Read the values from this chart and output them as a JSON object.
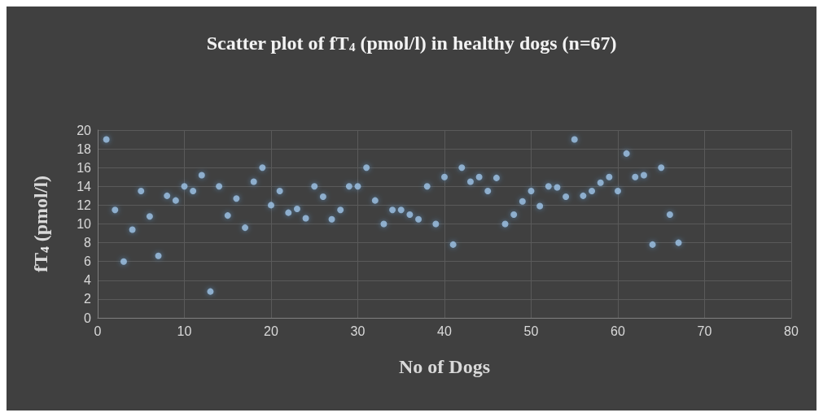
{
  "chart_data": {
    "type": "scatter",
    "title": "Scatter plot of fT$_{4}$ (pmol/l) in healthy dogs (n=67)",
    "xlabel": "No of Dogs",
    "ylabel": "fT$_{4}$ (pmol/l)",
    "x": [
      1,
      2,
      3,
      4,
      5,
      6,
      7,
      8,
      9,
      10,
      11,
      12,
      13,
      14,
      15,
      16,
      17,
      18,
      19,
      20,
      21,
      22,
      23,
      24,
      25,
      26,
      27,
      28,
      29,
      30,
      31,
      32,
      33,
      34,
      35,
      36,
      37,
      38,
      39,
      40,
      41,
      42,
      43,
      44,
      45,
      46,
      47,
      48,
      49,
      50,
      51,
      52,
      53,
      54,
      55,
      56,
      57,
      58,
      59,
      60,
      61,
      62,
      63,
      64,
      65,
      66,
      67
    ],
    "values": [
      19,
      11.5,
      6,
      9.4,
      13.5,
      10.8,
      6.6,
      13,
      12.5,
      14,
      13.5,
      15.2,
      2.8,
      14,
      10.9,
      12.7,
      9.6,
      14.5,
      16,
      12,
      13.5,
      11.2,
      11.6,
      10.6,
      14,
      12.9,
      10.5,
      11.5,
      14,
      14,
      16,
      12.5,
      10,
      11.5,
      11.5,
      11,
      10.5,
      14,
      10,
      15,
      7.8,
      16,
      14.5,
      15,
      13.5,
      14.9,
      10,
      11,
      12.4,
      13.5,
      11.9,
      14,
      13.9,
      12.9,
      19,
      13,
      13.5,
      14.4,
      15,
      13.5,
      17.5,
      15,
      15.2,
      7.8,
      16,
      11,
      8
    ],
    "color": "#9dc3e6",
    "marker": "circle",
    "xlim": [
      0,
      80
    ],
    "xticks": [
      0,
      10,
      20,
      30,
      40,
      50,
      60,
      70,
      80
    ],
    "ylim": [
      0,
      20
    ],
    "yticks": [
      0,
      2,
      4,
      6,
      8,
      10,
      12,
      14,
      16,
      18,
      20
    ],
    "grid": true
  }
}
